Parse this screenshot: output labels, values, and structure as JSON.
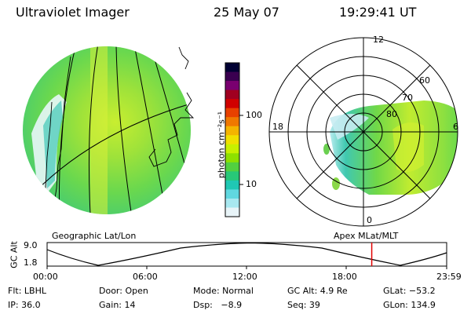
{
  "header": {
    "title": "Ultraviolet Imager",
    "date": "25 May 07",
    "time": "19:29:41 UT"
  },
  "colorbar": {
    "unit_label": "photon cm⁻²s⁻¹",
    "ticks": [
      "100",
      "10"
    ],
    "colors": [
      "#000033",
      "#3a0050",
      "#7a0070",
      "#a00020",
      "#d00000",
      "#e84000",
      "#f07800",
      "#f4b400",
      "#f0e000",
      "#c8f000",
      "#8ee000",
      "#52d040",
      "#28c878",
      "#20c8b4",
      "#60d8e0",
      "#a8e8f0",
      "#e8f4f8"
    ]
  },
  "geo_panel": {
    "label": "Geographic Lat/Lon"
  },
  "polar_panel": {
    "label": "Apex MLat/MLT",
    "mlt_labels": {
      "top": "12",
      "left": "18",
      "right": "6",
      "bottom": "0"
    },
    "lat_labels": [
      "60",
      "70",
      "80"
    ]
  },
  "altitude_plot": {
    "ylabel": "GC Alt",
    "yticks": [
      "9.0",
      "1.8"
    ],
    "xticks": [
      "00:00",
      "06:00",
      "12:00",
      "18:00",
      "23:59"
    ],
    "current_time_fraction": 0.8125,
    "marker_color": "#e00000"
  },
  "info": {
    "flt": "Flt: LBHL",
    "door": "Door: Open",
    "mode": "Mode: Normal",
    "gc_alt": "GC Alt: 4.9 Re",
    "glat": "GLat: −53.2",
    "ip": "IP: 36.0",
    "gain": "Gain: 14",
    "dsp": "Dsp:   −8.9",
    "seq": "Seq: 39",
    "glon": "GLon: 134.9"
  }
}
